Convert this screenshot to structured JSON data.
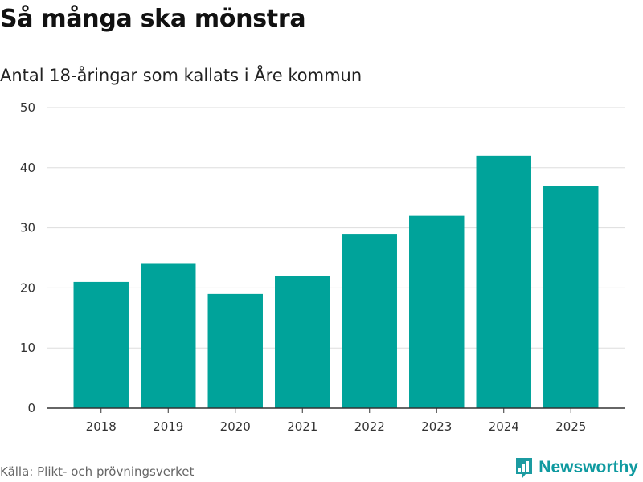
{
  "title": "Så många ska mönstra",
  "subtitle": "Antal 18-åringar som kallats i Åre kommun",
  "source": "Källa: Plikt- och prövningsverket",
  "brand": {
    "name": "Newsworthy",
    "icon": "newsworthy-logo-icon",
    "color": "#1b9ba1"
  },
  "colors": {
    "bar": "#00a39a",
    "grid": "#dddddd",
    "axis": "#333333"
  },
  "chart_data": {
    "type": "bar",
    "title": "Så många ska mönstra",
    "subtitle": "Antal 18-åringar som kallats i Åre kommun",
    "xlabel": "",
    "ylabel": "",
    "categories": [
      "2018",
      "2019",
      "2020",
      "2021",
      "2022",
      "2023",
      "2024",
      "2025"
    ],
    "values": [
      21,
      24,
      19,
      22,
      29,
      32,
      42,
      37
    ],
    "ylim": [
      0,
      50
    ],
    "yticks": [
      0,
      10,
      20,
      30,
      40,
      50
    ],
    "grid": true,
    "legend": "none"
  }
}
